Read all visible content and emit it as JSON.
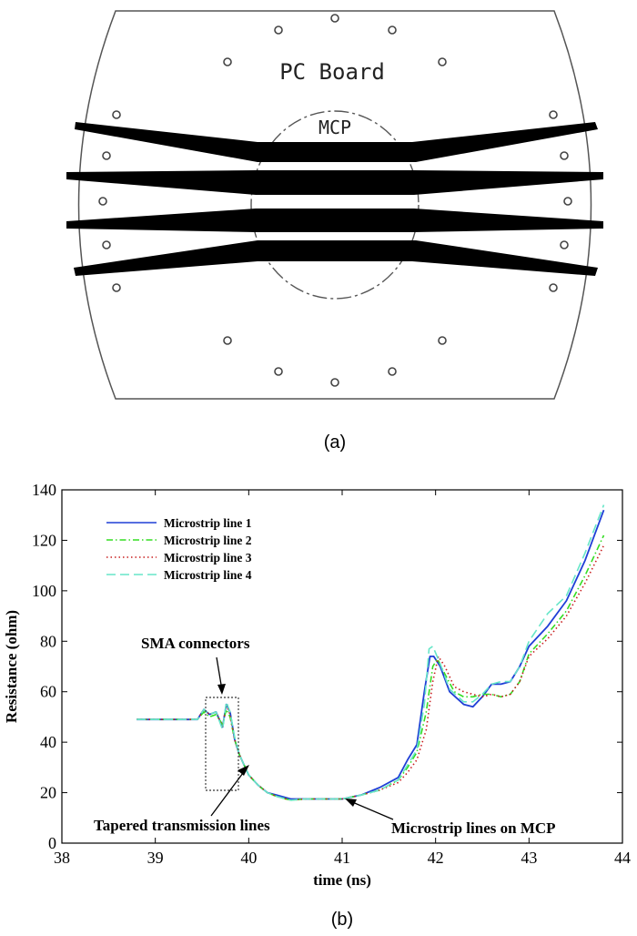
{
  "panel_a": {
    "board_label": "PC Board",
    "mcp_label": "MCP",
    "caption": "(a)"
  },
  "panel_b": {
    "caption": "(b)"
  },
  "chart_data": {
    "type": "line",
    "title": "",
    "xlabel": "time (ns)",
    "ylabel": "Resistance (ohm)",
    "xlim": [
      38,
      44
    ],
    "ylim": [
      0,
      140
    ],
    "xticks": [
      38,
      39,
      40,
      41,
      42,
      43,
      44
    ],
    "yticks": [
      0,
      20,
      40,
      60,
      80,
      100,
      120,
      140
    ],
    "grid": false,
    "legend_position": "top-left",
    "series": [
      {
        "name": "Microstrip line 1",
        "color": "#1f3fd6",
        "dash": "solid",
        "x": [
          38.8,
          39.3,
          39.45,
          39.52,
          39.58,
          39.65,
          39.72,
          39.76,
          39.8,
          39.85,
          39.9,
          40.0,
          40.1,
          40.2,
          40.3,
          40.45,
          40.6,
          40.8,
          41.0,
          41.2,
          41.4,
          41.6,
          41.7,
          41.8,
          41.88,
          41.94,
          41.98,
          42.05,
          42.15,
          42.3,
          42.4,
          42.5,
          42.6,
          42.7,
          42.8,
          42.9,
          43.0,
          43.2,
          43.4,
          43.6,
          43.8
        ],
        "y": [
          49,
          49,
          49,
          53,
          51,
          52,
          46,
          55,
          52,
          41,
          35,
          27,
          23,
          20,
          19,
          17.5,
          17.5,
          17.5,
          17.5,
          19,
          22,
          26,
          33,
          39,
          60,
          74,
          74,
          70,
          60,
          55,
          54,
          58,
          63,
          63,
          64,
          70,
          78,
          86,
          96,
          112,
          132
        ]
      },
      {
        "name": "Microstrip line 2",
        "color": "#33dd22",
        "dash": "dashdot",
        "x": [
          38.8,
          39.3,
          39.45,
          39.52,
          39.58,
          39.65,
          39.72,
          39.76,
          39.8,
          39.85,
          39.9,
          40.0,
          40.1,
          40.2,
          40.3,
          40.45,
          40.6,
          40.8,
          41.0,
          41.2,
          41.4,
          41.6,
          41.7,
          41.8,
          41.9,
          41.97,
          42.02,
          42.1,
          42.2,
          42.3,
          42.4,
          42.5,
          42.6,
          42.7,
          42.8,
          42.9,
          43.0,
          43.2,
          43.4,
          43.6,
          43.8
        ],
        "y": [
          49,
          49,
          49,
          52,
          50,
          51,
          47,
          53,
          50,
          41,
          35,
          27,
          23,
          20,
          18.5,
          17,
          17.5,
          17.5,
          17.5,
          19,
          21,
          25,
          30,
          36,
          52,
          70,
          73,
          67,
          60,
          58,
          58,
          59,
          59,
          58,
          59,
          64,
          75,
          83,
          92,
          106,
          122
        ]
      },
      {
        "name": "Microstrip line 3",
        "color": "#c81e1e",
        "dash": "dotted",
        "x": [
          38.8,
          39.3,
          39.45,
          39.52,
          39.58,
          39.65,
          39.72,
          39.76,
          39.8,
          39.85,
          39.9,
          40.0,
          40.1,
          40.2,
          40.3,
          40.45,
          40.6,
          40.8,
          41.0,
          41.2,
          41.4,
          41.6,
          41.7,
          41.8,
          41.9,
          41.97,
          42.03,
          42.1,
          42.2,
          42.3,
          42.4,
          42.5,
          42.6,
          42.7,
          42.8,
          42.9,
          43.0,
          43.2,
          43.4,
          43.6,
          43.8
        ],
        "y": [
          49,
          49,
          49,
          53,
          51,
          52,
          46,
          55,
          51,
          41,
          35,
          27,
          23,
          20,
          18.5,
          17,
          17.5,
          17.5,
          17.5,
          19,
          21,
          24,
          28,
          33,
          45,
          64,
          74,
          70,
          62,
          60,
          59,
          58,
          59,
          58,
          59,
          64,
          74,
          81,
          90,
          103,
          118
        ]
      },
      {
        "name": "Microstrip line 4",
        "color": "#66e6c8",
        "dash": "dashed",
        "x": [
          38.8,
          39.3,
          39.45,
          39.52,
          39.58,
          39.65,
          39.72,
          39.76,
          39.8,
          39.85,
          39.9,
          40.0,
          40.1,
          40.2,
          40.3,
          40.45,
          40.6,
          40.8,
          41.0,
          41.2,
          41.4,
          41.6,
          41.7,
          41.8,
          41.88,
          41.93,
          41.97,
          42.05,
          42.15,
          42.3,
          42.4,
          42.5,
          42.6,
          42.7,
          42.8,
          42.9,
          43.0,
          43.2,
          43.4,
          43.6,
          43.8
        ],
        "y": [
          49,
          49,
          49,
          53,
          51,
          52,
          45,
          56,
          52,
          42,
          35,
          27,
          23,
          20,
          18.5,
          17,
          17.5,
          17.5,
          17.5,
          19,
          21,
          25,
          31,
          37,
          55,
          77,
          78,
          71,
          61,
          56,
          56,
          59,
          63,
          64,
          64,
          70,
          80,
          91,
          98,
          115,
          134
        ]
      }
    ],
    "annotations": [
      {
        "text": "SMA connectors",
        "x": 39.6,
        "y": 67
      },
      {
        "text": "Tapered transmission lines",
        "x": 39.3,
        "y": 7
      },
      {
        "text": "Microstrip lines on MCP",
        "x": 42.2,
        "y": 5
      }
    ]
  }
}
